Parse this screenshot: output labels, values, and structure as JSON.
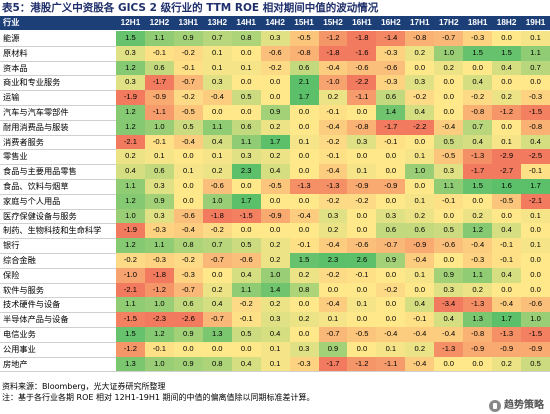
{
  "title": "表5：港股广义中资股各 GICS 2 级行业的 TTM ROE 相对期间中值的波动情况",
  "header": {
    "first_col": "行业",
    "periods": [
      "12H1",
      "12H2",
      "13H1",
      "13H2",
      "14H1",
      "14H2",
      "15H1",
      "15H2",
      "16H1",
      "16H2",
      "17H1",
      "17H2",
      "18H1",
      "18H2",
      "19H1"
    ]
  },
  "rows": [
    {
      "label": "能源",
      "values": [
        "1.5",
        "1.1",
        "0.9",
        "0.7",
        "0.8",
        "0.3",
        "-0.5",
        "-1.2",
        "-1.8",
        "-1.4",
        "-0.8",
        "-0.7",
        "-0.3",
        "0.0",
        "0.1"
      ]
    },
    {
      "label": "原材料",
      "values": [
        "0.3",
        "-0.1",
        "-0.2",
        "0.1",
        "0.0",
        "-0.6",
        "-0.8",
        "-1.8",
        "-1.6",
        "-0.3",
        "0.2",
        "1.0",
        "1.5",
        "1.5",
        "1.1"
      ]
    },
    {
      "label": "资本品",
      "values": [
        "1.2",
        "0.6",
        "-0.1",
        "0.1",
        "0.1",
        "-0.2",
        "0.6",
        "-0.4",
        "-0.6",
        "-0.6",
        "0.0",
        "0.2",
        "0.0",
        "0.4",
        "0.7"
      ]
    },
    {
      "label": "商业和专业服务",
      "values": [
        "0.3",
        "-1.7",
        "-0.7",
        "0.3",
        "0.0",
        "0.0",
        "2.1",
        "-1.0",
        "-2.2",
        "-0.3",
        "0.3",
        "0.0",
        "0.4",
        "0.0",
        "0.0"
      ]
    },
    {
      "label": "运输",
      "values": [
        "-1.9",
        "-0.9",
        "-0.2",
        "-0.4",
        "0.5",
        "0.0",
        "1.7",
        "0.2",
        "-1.1",
        "0.6",
        "-0.2",
        "0.0",
        "-0.2",
        "0.2",
        "-0.3"
      ]
    },
    {
      "label": "汽车与汽车零部件",
      "values": [
        "1.2",
        "-1.1",
        "-0.5",
        "0.0",
        "0.0",
        "0.9",
        "0.0",
        "-0.1",
        "0.0",
        "1.4",
        "0.4",
        "0.0",
        "-0.8",
        "-1.2",
        "-1.5"
      ]
    },
    {
      "label": "耐用消费品与服装",
      "values": [
        "1.2",
        "1.0",
        "0.5",
        "1.1",
        "0.6",
        "0.2",
        "0.0",
        "-0.4",
        "-0.8",
        "-1.7",
        "-2.2",
        "-0.4",
        "0.7",
        "0.0",
        "-0.8"
      ]
    },
    {
      "label": "消费者服务",
      "values": [
        "-2.1",
        "-0.1",
        "-0.4",
        "0.4",
        "1.1",
        "1.7",
        "0.1",
        "-0.2",
        "0.3",
        "-0.1",
        "0.0",
        "0.5",
        "0.4",
        "0.1",
        "0.4"
      ]
    },
    {
      "label": "零售业",
      "values": [
        "0.2",
        "0.1",
        "0.0",
        "0.1",
        "0.3",
        "0.2",
        "0.0",
        "-0.1",
        "0.0",
        "0.0",
        "0.1",
        "-0.5",
        "-1.3",
        "-2.9",
        "-2.5"
      ]
    },
    {
      "label": "食品与主要用品零售",
      "values": [
        "0.4",
        "0.6",
        "0.1",
        "0.2",
        "2.3",
        "0.4",
        "0.0",
        "-0.4",
        "0.1",
        "0.0",
        "1.0",
        "0.3",
        "-1.7",
        "-2.7",
        "-0.1"
      ]
    },
    {
      "label": "食品、饮料与烟草",
      "values": [
        "1.1",
        "0.3",
        "0.0",
        "-0.6",
        "0.0",
        "-0.5",
        "-1.3",
        "-1.3",
        "-0.9",
        "-0.9",
        "0.0",
        "1.1",
        "1.5",
        "1.6",
        "1.7"
      ]
    },
    {
      "label": "家庭与个人用品",
      "values": [
        "1.2",
        "0.9",
        "0.0",
        "1.0",
        "1.7",
        "0.0",
        "0.0",
        "-0.2",
        "-0.2",
        "0.0",
        "0.1",
        "-0.1",
        "0.0",
        "-0.5",
        "-2.1"
      ]
    },
    {
      "label": "医疗保健设备与服务",
      "values": [
        "1.0",
        "0.3",
        "-0.6",
        "-1.8",
        "-1.5",
        "-0.9",
        "-0.4",
        "0.3",
        "0.0",
        "0.3",
        "0.2",
        "0.0",
        "0.2",
        "0.0",
        "0.1"
      ]
    },
    {
      "label": "制药、生物科技和生命科学",
      "values": [
        "-1.9",
        "-0.3",
        "-0.4",
        "-0.2",
        "0.0",
        "0.0",
        "0.0",
        "0.2",
        "0.0",
        "0.6",
        "0.6",
        "0.5",
        "1.2",
        "0.4",
        "0.0"
      ]
    },
    {
      "label": "银行",
      "values": [
        "1.2",
        "1.1",
        "0.8",
        "0.7",
        "0.5",
        "0.2",
        "-0.1",
        "-0.4",
        "-0.6",
        "-0.7",
        "-0.9",
        "-0.6",
        "-0.4",
        "-0.1",
        "0.1"
      ]
    },
    {
      "label": "综合金融",
      "values": [
        "-0.2",
        "-0.3",
        "-0.2",
        "-0.7",
        "-0.6",
        "0.2",
        "1.5",
        "2.3",
        "2.6",
        "0.9",
        "-0.4",
        "0.0",
        "-0.3",
        "-0.1",
        "0.0"
      ]
    },
    {
      "label": "保险",
      "values": [
        "-1.0",
        "-1.8",
        "-0.3",
        "0.0",
        "0.4",
        "1.0",
        "0.2",
        "-0.2",
        "-0.1",
        "0.0",
        "0.1",
        "0.9",
        "1.1",
        "0.4",
        "0.0"
      ]
    },
    {
      "label": "软件与服务",
      "values": [
        "-2.1",
        "-1.2",
        "-0.7",
        "0.2",
        "1.1",
        "1.4",
        "0.8",
        "0.0",
        "0.0",
        "-0.2",
        "0.0",
        "0.3",
        "0.2",
        "0.0",
        "0.0"
      ]
    },
    {
      "label": "技术硬件与设备",
      "values": [
        "1.1",
        "1.0",
        "0.6",
        "0.4",
        "-0.2",
        "0.2",
        "0.0",
        "-0.4",
        "0.1",
        "0.0",
        "0.4",
        "-3.4",
        "-1.3",
        "-0.4",
        "-0.6"
      ]
    },
    {
      "label": "半导体产品与设备",
      "values": [
        "-1.5",
        "-2.3",
        "-2.6",
        "-0.7",
        "-0.1",
        "0.3",
        "0.2",
        "0.1",
        "0.0",
        "0.0",
        "-0.1",
        "0.4",
        "1.3",
        "1.7",
        "1.0"
      ]
    },
    {
      "label": "电信业务",
      "values": [
        "1.5",
        "1.2",
        "0.9",
        "1.3",
        "0.5",
        "0.4",
        "0.0",
        "-0.7",
        "-0.5",
        "-0.4",
        "-0.4",
        "-0.4",
        "-0.8",
        "-1.3",
        "-1.5"
      ]
    },
    {
      "label": "公用事业",
      "values": [
        "-1.2",
        "-0.1",
        "0.0",
        "0.0",
        "0.0",
        "0.1",
        "0.3",
        "0.9",
        "0.0",
        "0.1",
        "0.2",
        "-1.3",
        "-0.9",
        "-0.9",
        "-0.9"
      ]
    },
    {
      "label": "房地产",
      "values": [
        "1.3",
        "1.0",
        "0.9",
        "0.8",
        "0.4",
        "0.1",
        "-0.3",
        "-1.7",
        "-1.2",
        "-1.1",
        "-0.4",
        "0.0",
        "0.0",
        "0.2",
        "0.5"
      ]
    }
  ],
  "notes": {
    "source": "资料来源：Bloomberg，光大证券研究所整理",
    "remark": "注：基于各行业各期 ROE 相对 12H1-19H1 期间的中值的偏离值除以同期标准差计算。"
  },
  "watermark": "趋势策略",
  "colors": {
    "header_bg": "#1d3f78",
    "positive": "#5cbf6a",
    "neutral": "#ffe88a",
    "negative": "#f27a5e"
  }
}
